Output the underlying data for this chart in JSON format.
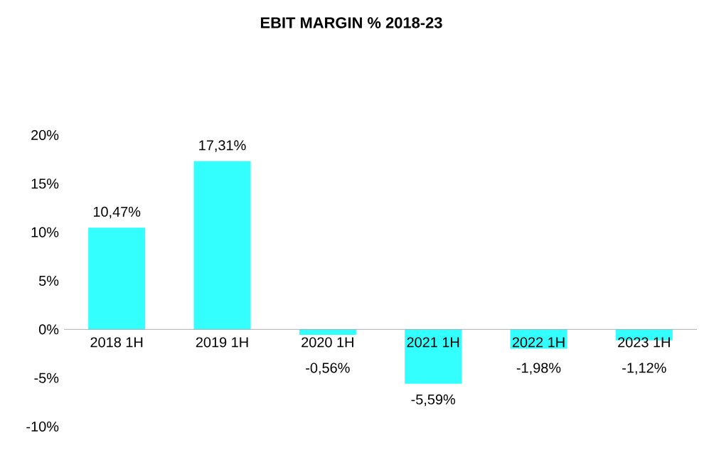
{
  "chart_data": {
    "type": "bar",
    "title": "EBIT MARGIN % 2018-23",
    "categories": [
      "2018 1H",
      "2019 1H",
      "2020 1H",
      "2021 1H",
      "2022 1H",
      "2023 1H"
    ],
    "values": [
      10.47,
      17.31,
      -0.56,
      -5.59,
      -1.98,
      -1.12
    ],
    "value_labels": [
      "10,47%",
      "17,31%",
      "-0,56%",
      "-5,59%",
      "-1,98%",
      "-1,12%"
    ],
    "color": "#33ffff",
    "ylim": [
      -10,
      20
    ],
    "yticks": [
      {
        "value": -10,
        "label": "-10%"
      },
      {
        "value": -5,
        "label": "-5%"
      },
      {
        "value": 0,
        "label": "0%"
      },
      {
        "value": 5,
        "label": "5%"
      },
      {
        "value": 10,
        "label": "10%"
      },
      {
        "value": 15,
        "label": "15%"
      },
      {
        "value": 20,
        "label": "20%"
      }
    ]
  }
}
